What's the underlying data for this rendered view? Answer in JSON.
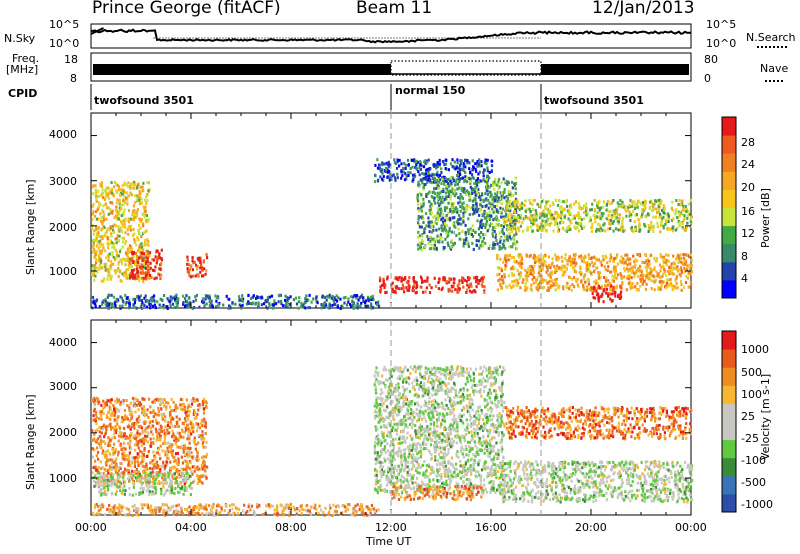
{
  "header": {
    "station": "Prince George (fitACF)",
    "beam": "Beam 11",
    "date": "12/Jan/2013"
  },
  "strip": {
    "nsky_label": "N.Sky",
    "nsky_ticks": [
      "10^5",
      "10^0"
    ],
    "nsearch_label": "N.Search",
    "nsearch_ticks": [
      "10^5",
      "10^0"
    ],
    "freq_label_1": "Freq.",
    "freq_label_2": "[MHz]",
    "freq_ticks": [
      "18",
      "8"
    ],
    "nave_label": "Nave",
    "nave_ticks": [
      "80",
      "0"
    ],
    "cpid_label": "CPID",
    "cpid_modes": [
      {
        "name": "twofsound 3501",
        "start_hour": 0
      },
      {
        "name": "normal 150",
        "start_hour": 12
      },
      {
        "name": "twofsound 3501",
        "start_hour": 18
      }
    ]
  },
  "chart_data": [
    {
      "type": "heatmap",
      "name": "power",
      "ylabel": "Slant Range [km]",
      "colorbar_label": "Power [dB]",
      "colorbar_ticks": [
        "28",
        "24",
        "20",
        "16",
        "12",
        "8",
        "4"
      ],
      "colors": [
        "#0000ff",
        "#2244aa",
        "#3a8a6a",
        "#44aa44",
        "#c8e43a",
        "#f7c419",
        "#f5a623",
        "#f08020",
        "#ee5a1f",
        "#e41a1c"
      ],
      "y_ticks": [
        "4000",
        "3000",
        "2000",
        "1000"
      ],
      "ylim": [
        180,
        4500
      ],
      "regions": [
        {
          "x": [
            0.0,
            2.3
          ],
          "y": [
            800,
            3000
          ],
          "level": 0.55
        },
        {
          "x": [
            1.5,
            2.8
          ],
          "y": [
            850,
            1500
          ],
          "level": 0.9
        },
        {
          "x": [
            3.8,
            4.6
          ],
          "y": [
            900,
            1400
          ],
          "level": 0.85
        },
        {
          "x": [
            0.0,
            11.5
          ],
          "y": [
            200,
            500
          ],
          "level": 0.2
        },
        {
          "x": [
            11.3,
            16.0
          ],
          "y": [
            3000,
            3500
          ],
          "level": 0.15
        },
        {
          "x": [
            11.5,
            15.7
          ],
          "y": [
            550,
            900
          ],
          "level": 0.95
        },
        {
          "x": [
            13.0,
            17.0
          ],
          "y": [
            1500,
            3100
          ],
          "level": 0.3
        },
        {
          "x": [
            16.2,
            24.0
          ],
          "y": [
            600,
            1400
          ],
          "level": 0.65
        },
        {
          "x": [
            16.5,
            24.0
          ],
          "y": [
            1900,
            2600
          ],
          "level": 0.45
        },
        {
          "x": [
            20.0,
            21.2
          ],
          "y": [
            350,
            700
          ],
          "level": 1.0
        }
      ]
    },
    {
      "type": "heatmap",
      "name": "velocity",
      "ylabel": "Slant Range [km]",
      "colorbar_label": "Velocity [m s-1]",
      "colorbar_ticks": [
        "1000",
        "500",
        "100",
        "25",
        "-25",
        "-100",
        "-500",
        "-1000"
      ],
      "colors": [
        "#2b4fa8",
        "#3a74b8",
        "#3a8a3a",
        "#5fc940",
        "#c8c8c0",
        "#c8c8c0",
        "#f7b733",
        "#f08c22",
        "#ea5a1d",
        "#e41a1c"
      ],
      "y_ticks": [
        "4000",
        "3000",
        "2000",
        "1000"
      ],
      "ylim": [
        180,
        4500
      ],
      "regions": [
        {
          "x": [
            0.0,
            4.6
          ],
          "y": [
            900,
            2800
          ],
          "level": 0.75
        },
        {
          "x": [
            0.0,
            4.0
          ],
          "y": [
            650,
            1150
          ],
          "level": 0.45
        },
        {
          "x": [
            0.0,
            11.5
          ],
          "y": [
            200,
            450
          ],
          "level": 0.7
        },
        {
          "x": [
            11.3,
            16.5
          ],
          "y": [
            700,
            3500
          ],
          "level": 0.45
        },
        {
          "x": [
            12.0,
            15.7
          ],
          "y": [
            550,
            850
          ],
          "level": 0.75
        },
        {
          "x": [
            16.3,
            24.0
          ],
          "y": [
            500,
            1400
          ],
          "level": 0.45
        },
        {
          "x": [
            16.5,
            24.0
          ],
          "y": [
            1900,
            2600
          ],
          "level": 0.8
        }
      ]
    }
  ],
  "x_axis": {
    "ticks": [
      "00:00",
      "04:00",
      "08:00",
      "12:00",
      "16:00",
      "20:00",
      "00:00"
    ],
    "label": "Time UT"
  }
}
